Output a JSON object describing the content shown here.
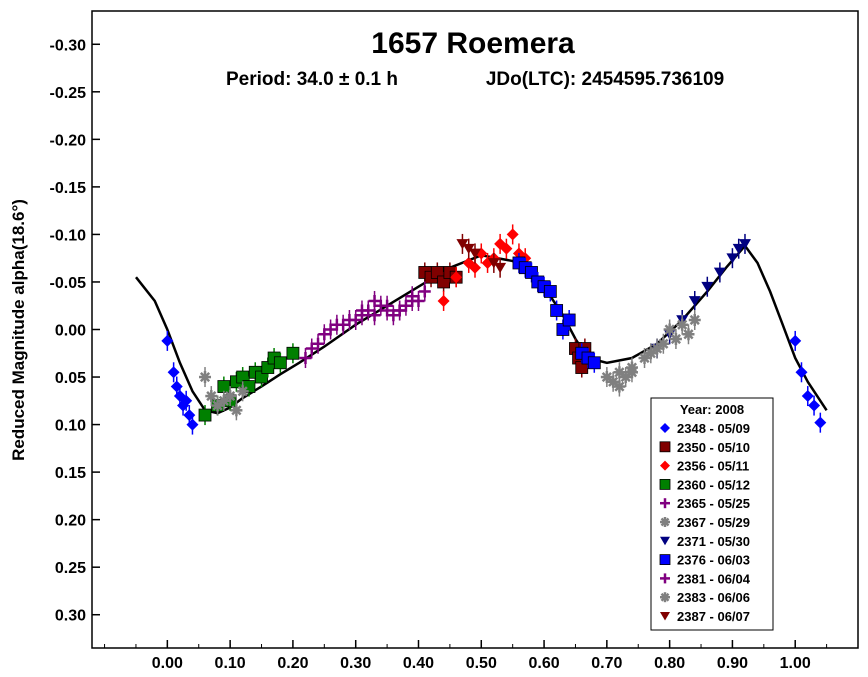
{
  "chart_data": {
    "type": "scatter",
    "title": "1657 Roemera",
    "subtitle_period": "Period: 34.0 ± 0.1 h",
    "subtitle_epoch": "JDo(LTC): 2454595.736109",
    "xlabel": "",
    "ylabel": "Reduced Magnitude alpha(18.6°)",
    "xlim": [
      -0.12,
      1.1
    ],
    "ylim": [
      0.335,
      -0.335
    ],
    "y_inverted": true,
    "grid": false,
    "x_ticks": [
      "0.00",
      "0.10",
      "0.20",
      "0.30",
      "0.40",
      "0.50",
      "0.60",
      "0.70",
      "0.80",
      "0.90",
      "1.00"
    ],
    "x_tick_values": [
      0,
      0.1,
      0.2,
      0.3,
      0.4,
      0.5,
      0.6,
      0.7,
      0.8,
      0.9,
      1.0
    ],
    "y_ticks": [
      "-0.30",
      "-0.25",
      "-0.20",
      "-0.15",
      "-0.10",
      "-0.05",
      "0.00",
      "0.05",
      "0.10",
      "0.15",
      "0.20",
      "0.25",
      "0.30"
    ],
    "y_tick_values": [
      -0.3,
      -0.25,
      -0.2,
      -0.15,
      -0.1,
      -0.05,
      0,
      0.05,
      0.1,
      0.15,
      0.2,
      0.25,
      0.3
    ],
    "legend_placement": "bottom-right",
    "legend_title": "Year: 2008",
    "fit_curve": {
      "x": [
        -0.05,
        -0.02,
        0.0,
        0.02,
        0.04,
        0.06,
        0.08,
        0.1,
        0.12,
        0.15,
        0.18,
        0.21,
        0.25,
        0.3,
        0.35,
        0.4,
        0.45,
        0.5,
        0.55,
        0.6,
        0.63,
        0.65,
        0.67,
        0.7,
        0.74,
        0.78,
        0.82,
        0.86,
        0.89,
        0.92,
        0.94,
        0.96,
        0.98,
        1.0,
        1.02,
        1.05
      ],
      "y": [
        -0.055,
        -0.03,
        0.0,
        0.035,
        0.065,
        0.085,
        0.088,
        0.082,
        0.072,
        0.06,
        0.047,
        0.035,
        0.018,
        -0.005,
        -0.025,
        -0.045,
        -0.065,
        -0.078,
        -0.072,
        -0.045,
        -0.015,
        0.01,
        0.03,
        0.035,
        0.03,
        0.015,
        -0.01,
        -0.04,
        -0.065,
        -0.088,
        -0.07,
        -0.04,
        -0.005,
        0.03,
        0.055,
        0.085
      ]
    },
    "series": [
      {
        "name": "2348 - 05/09",
        "color": "#0000ff",
        "marker": "diamond",
        "x": [
          0.0,
          0.01,
          0.015,
          0.02,
          0.025,
          0.03,
          0.035,
          0.04,
          1.0,
          1.01,
          1.02,
          1.03,
          1.04
        ],
        "y": [
          0.012,
          0.045,
          0.06,
          0.07,
          0.08,
          0.075,
          0.09,
          0.1,
          0.012,
          0.045,
          0.07,
          0.08,
          0.098
        ]
      },
      {
        "name": "2350 - 05/10",
        "color": "#800000",
        "marker": "square",
        "x": [
          0.41,
          0.42,
          0.43,
          0.44,
          0.45,
          0.46,
          0.65,
          0.655,
          0.66,
          0.665
        ],
        "y": [
          -0.06,
          -0.055,
          -0.06,
          -0.05,
          -0.06,
          -0.055,
          0.02,
          0.03,
          0.04,
          0.02
        ]
      },
      {
        "name": "2356 - 05/11",
        "color": "#ff0000",
        "marker": "diamond",
        "x": [
          0.44,
          0.46,
          0.48,
          0.49,
          0.5,
          0.51,
          0.52,
          0.53,
          0.54,
          0.55,
          0.56,
          0.57
        ],
        "y": [
          -0.03,
          -0.055,
          -0.07,
          -0.065,
          -0.08,
          -0.07,
          -0.075,
          -0.09,
          -0.085,
          -0.1,
          -0.08,
          -0.075
        ]
      },
      {
        "name": "2360 - 05/12",
        "color": "#008000",
        "marker": "square",
        "x": [
          0.06,
          0.08,
          0.09,
          0.1,
          0.11,
          0.12,
          0.13,
          0.14,
          0.15,
          0.16,
          0.17,
          0.18,
          0.2
        ],
        "y": [
          0.09,
          0.08,
          0.06,
          0.075,
          0.055,
          0.05,
          0.06,
          0.045,
          0.05,
          0.04,
          0.03,
          0.035,
          0.025
        ]
      },
      {
        "name": "2365 - 05/25",
        "color": "#800080",
        "marker": "plus",
        "x": [
          0.22,
          0.24,
          0.26,
          0.28,
          0.3,
          0.31,
          0.32,
          0.33,
          0.34,
          0.35,
          0.36,
          0.37,
          0.38,
          0.39,
          0.4
        ],
        "y": [
          0.03,
          0.015,
          0.0,
          -0.005,
          -0.01,
          -0.015,
          -0.02,
          -0.015,
          -0.025,
          -0.02,
          -0.015,
          -0.02,
          -0.025,
          -0.03,
          -0.03
        ]
      },
      {
        "name": "2367 - 05/29",
        "color": "#808080",
        "marker": "asterisk",
        "x": [
          0.06,
          0.07,
          0.08,
          0.09,
          0.1,
          0.11,
          0.12,
          0.7,
          0.71,
          0.72,
          0.73,
          0.74
        ],
        "y": [
          0.05,
          0.07,
          0.08,
          0.075,
          0.07,
          0.085,
          0.065,
          0.05,
          0.055,
          0.06,
          0.05,
          0.045
        ]
      },
      {
        "name": "2371 - 05/30",
        "color": "#000080",
        "marker": "triangle",
        "x": [
          0.78,
          0.8,
          0.82,
          0.84,
          0.86,
          0.88,
          0.9,
          0.91,
          0.92
        ],
        "y": [
          0.02,
          0.005,
          -0.01,
          -0.03,
          -0.045,
          -0.06,
          -0.075,
          -0.085,
          -0.09
        ]
      },
      {
        "name": "2376 - 06/03",
        "color": "#0000ff",
        "marker": "square",
        "x": [
          0.56,
          0.57,
          0.58,
          0.59,
          0.6,
          0.61,
          0.62,
          0.63,
          0.64,
          0.66,
          0.67,
          0.68
        ],
        "y": [
          -0.07,
          -0.065,
          -0.06,
          -0.05,
          -0.045,
          -0.04,
          -0.02,
          0.0,
          -0.01,
          0.025,
          0.03,
          0.035
        ]
      },
      {
        "name": "2381 - 06/04",
        "color": "#800080",
        "marker": "plus",
        "x": [
          0.23,
          0.25,
          0.27,
          0.29,
          0.31,
          0.33,
          0.35,
          0.37,
          0.39,
          0.41
        ],
        "y": [
          0.02,
          0.005,
          -0.005,
          -0.01,
          -0.02,
          -0.03,
          -0.025,
          -0.02,
          -0.035,
          -0.04
        ]
      },
      {
        "name": "2383 - 06/06",
        "color": "#808080",
        "marker": "asterisk",
        "x": [
          0.72,
          0.74,
          0.76,
          0.77,
          0.78,
          0.79,
          0.8,
          0.81,
          0.82,
          0.83,
          0.84
        ],
        "y": [
          0.045,
          0.04,
          0.03,
          0.025,
          0.02,
          0.015,
          0.0,
          0.01,
          -0.005,
          0.005,
          -0.01
        ]
      },
      {
        "name": "2387 - 06/07",
        "color": "#800000",
        "marker": "triangle",
        "x": [
          0.47,
          0.48,
          0.49,
          0.52,
          0.53
        ],
        "y": [
          -0.09,
          -0.085,
          -0.08,
          -0.07,
          -0.065
        ]
      }
    ]
  }
}
